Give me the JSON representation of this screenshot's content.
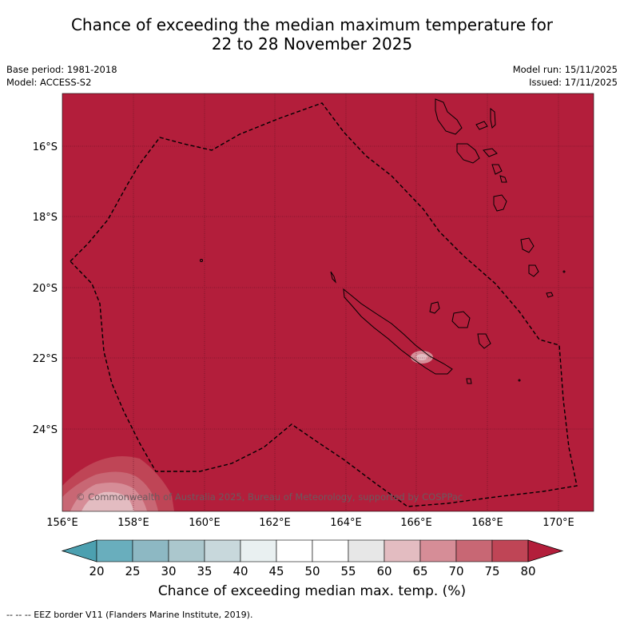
{
  "title": {
    "line1": "Chance of exceeding the median maximum temperature for",
    "line2": "22 to 28 November 2025"
  },
  "info_left": {
    "base_period": "Base period: 1981-2018",
    "model": "Model: ACCESS-S2"
  },
  "info_right": {
    "model_run": "Model run: 15/11/2025",
    "issued": "Issued: 17/11/2025"
  },
  "map": {
    "lat_labels": [
      "16°S",
      "18°S",
      "20°S",
      "22°S",
      "24°S"
    ],
    "lon_labels": [
      "156°E",
      "158°E",
      "160°E",
      "162°E",
      "164°E",
      "166°E",
      "168°E",
      "170°E"
    ],
    "copyright": "© Commonwealth of Australia 2025, Bureau of Meteorology, supported by COSPPac",
    "colors": {
      "background": "#b31e3b",
      "land_outline": "#000000",
      "grid": "#5a1020"
    }
  },
  "colorbar": {
    "ticks": [
      "20",
      "25",
      "30",
      "35",
      "40",
      "45",
      "50",
      "55",
      "60",
      "65",
      "70",
      "75",
      "80"
    ],
    "colors": [
      "#4ca0b0",
      "#69aebd",
      "#8db8c3",
      "#abc7cd",
      "#c8d8dc",
      "#e9f0f1",
      "#ffffff",
      "#ffffff",
      "#e7e7e7",
      "#e3bcc1",
      "#d68d97",
      "#c86774",
      "#bf4556",
      "#b31e3b"
    ],
    "label": "Chance of exceeding median max. temp. (%)"
  },
  "footer": "--  --  -- EEZ border V11 (Flanders Marine Institute, 2019)."
}
